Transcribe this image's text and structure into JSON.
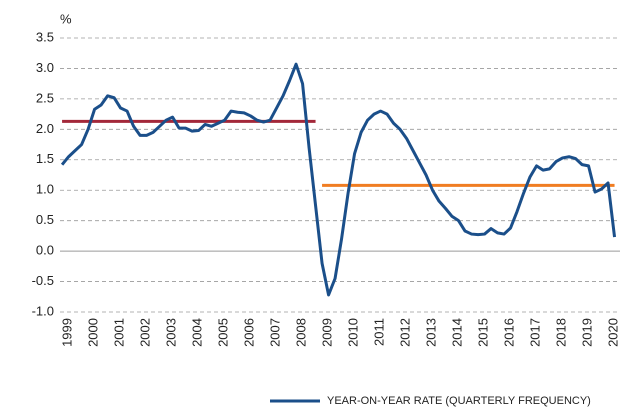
{
  "chart_data": {
    "type": "line",
    "unit_label": "%",
    "xlim": [
      1998.92,
      2020.46
    ],
    "xticks": [
      1999,
      2000,
      2001,
      2002,
      2003,
      2004,
      2005,
      2006,
      2007,
      2008,
      2009,
      2010,
      2011,
      2012,
      2013,
      2014,
      2015,
      2016,
      2017,
      2018,
      2019,
      2020
    ],
    "ylim": [
      -1,
      3.5
    ],
    "yticks": [
      {
        "value": -1,
        "label": "-1.0"
      },
      -0.5,
      {
        "value": 0,
        "label": "0.0"
      },
      0.5,
      {
        "value": 1,
        "label": "1.0"
      },
      1.5,
      {
        "value": 2,
        "label": "2.0"
      },
      2.5,
      {
        "value": 3,
        "label": "3.0"
      },
      3.5
    ],
    "grid": true,
    "series": [
      {
        "name": "YEAR-ON-YEAR RATE (QUARTERLY FREQUENCY)",
        "color": "#1b4f8a",
        "x": [
          1999,
          1999.25,
          1999.5,
          1999.75,
          2000,
          2000.25,
          2000.5,
          2000.75,
          2001,
          2001.25,
          2001.5,
          2001.75,
          2002,
          2002.25,
          2002.5,
          2002.75,
          2003,
          2003.25,
          2003.5,
          2003.75,
          2004,
          2004.25,
          2004.5,
          2004.75,
          2005,
          2005.25,
          2005.5,
          2005.75,
          2006,
          2006.25,
          2006.5,
          2006.75,
          2007,
          2007.25,
          2007.5,
          2007.75,
          2008,
          2008.25,
          2008.5,
          2008.75,
          2009,
          2009.25,
          2009.5,
          2009.75,
          2010,
          2010.25,
          2010.5,
          2010.75,
          2011,
          2011.25,
          2011.5,
          2011.75,
          2012,
          2012.25,
          2012.5,
          2012.75,
          2013,
          2013.25,
          2013.5,
          2013.75,
          2014,
          2014.25,
          2014.5,
          2014.75,
          2015,
          2015.25,
          2015.5,
          2015.75,
          2016,
          2016.25,
          2016.5,
          2016.75,
          2017,
          2017.25,
          2017.5,
          2017.75,
          2018,
          2018.25,
          2018.5,
          2018.75,
          2019,
          2019.25,
          2019.5,
          2019.75,
          2020,
          2020.25
        ],
        "values": [
          1.42,
          1.55,
          1.65,
          1.75,
          2.0,
          2.33,
          2.4,
          2.55,
          2.52,
          2.35,
          2.3,
          2.05,
          1.9,
          1.9,
          1.95,
          2.05,
          2.15,
          2.2,
          2.02,
          2.02,
          1.97,
          1.98,
          2.08,
          2.05,
          2.1,
          2.15,
          2.3,
          2.28,
          2.27,
          2.22,
          2.15,
          2.12,
          2.15,
          2.35,
          2.55,
          2.8,
          3.07,
          2.75,
          1.7,
          0.75,
          -0.2,
          -0.72,
          -0.45,
          0.2,
          0.95,
          1.6,
          1.95,
          2.15,
          2.25,
          2.3,
          2.25,
          2.1,
          2.0,
          1.85,
          1.65,
          1.45,
          1.25,
          1.0,
          0.82,
          0.7,
          0.57,
          0.5,
          0.33,
          0.28,
          0.27,
          0.28,
          0.37,
          0.3,
          0.28,
          0.38,
          0.65,
          0.95,
          1.22,
          1.4,
          1.33,
          1.35,
          1.47,
          1.53,
          1.55,
          1.52,
          1.42,
          1.4,
          0.97,
          1.02,
          1.12,
          0.23
        ]
      }
    ],
    "reference_lines": [
      {
        "value": 2.13,
        "x": [
          1999,
          2008.75
        ],
        "color": "#a3283a"
      },
      {
        "value": 1.08,
        "x": [
          2009,
          2020.25
        ],
        "color": "#f07d22"
      }
    ]
  }
}
